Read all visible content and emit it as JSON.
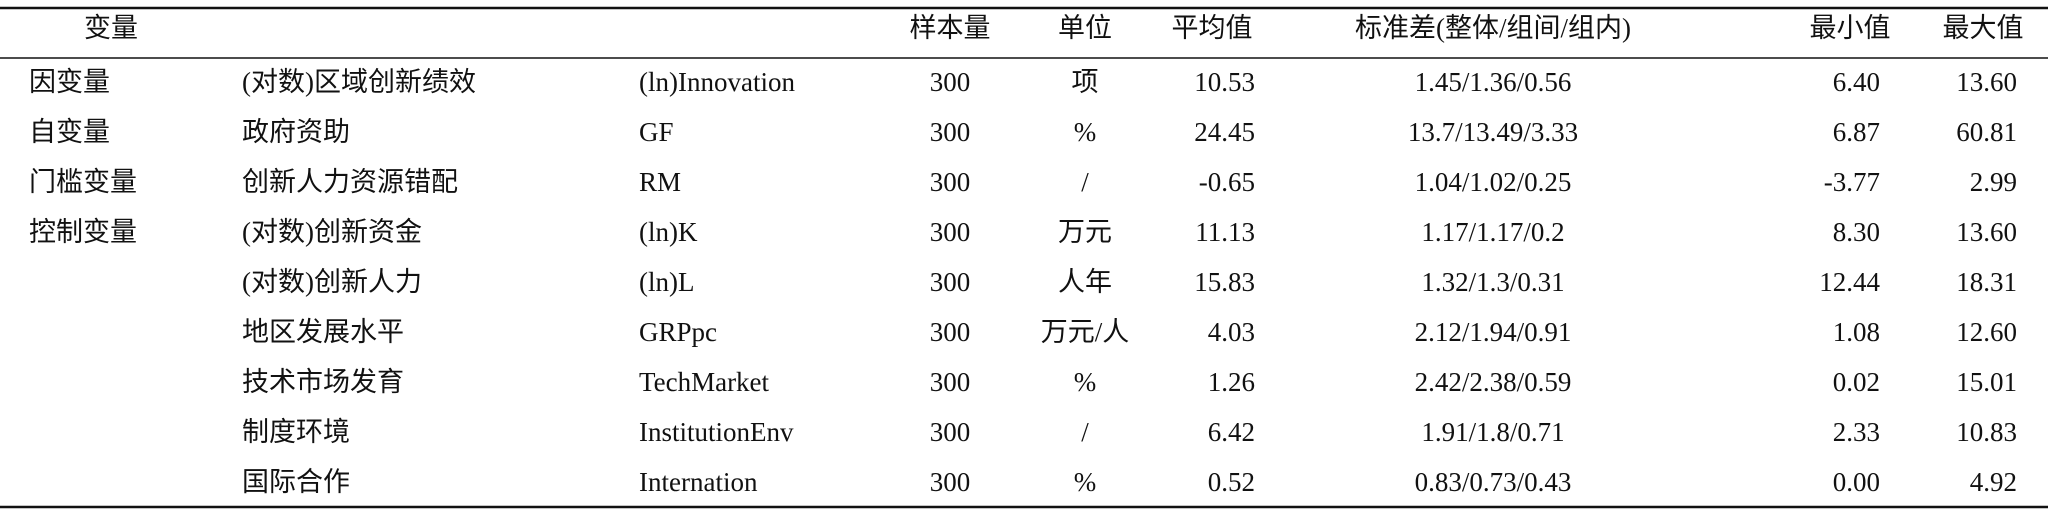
{
  "table": {
    "header": [
      "变量",
      "样本量",
      "单位",
      "平均值",
      "标准差(整体/组间/组内)",
      "最小值",
      "最大值"
    ],
    "rows": [
      [
        "因变量",
        "(对数)区域创新绩效",
        "(ln)Innovation",
        "300",
        "项",
        "10.53",
        "1.45/1.36/0.56",
        "6.40",
        "13.60"
      ],
      [
        "自变量",
        "政府资助",
        "GF",
        "300",
        "%",
        "24.45",
        "13.7/13.49/3.33",
        "6.87",
        "60.81"
      ],
      [
        "门槛变量",
        "创新人力资源错配",
        "RM",
        "300",
        "/",
        "-0.65",
        "1.04/1.02/0.25",
        "-3.77",
        "2.99"
      ],
      [
        "控制变量",
        "(对数)创新资金",
        "(ln)K",
        "300",
        "万元",
        "11.13",
        "1.17/1.17/0.2",
        "8.30",
        "13.60"
      ],
      [
        null,
        "(对数)创新人力",
        "(ln)L",
        "300",
        "人年",
        "15.83",
        "1.32/1.3/0.31",
        "12.44",
        "18.31"
      ],
      [
        null,
        "地区发展水平",
        "GRPpc",
        "300",
        "万元/人",
        "4.03",
        "2.12/1.94/0.91",
        "1.08",
        "12.60"
      ],
      [
        null,
        "技术市场发育",
        "TechMarket",
        "300",
        "%",
        "1.26",
        "2.42/2.38/0.59",
        "0.02",
        "15.01"
      ],
      [
        null,
        "制度环境",
        "InstitutionEnv",
        "300",
        "/",
        "6.42",
        "1.91/1.8/0.71",
        "2.33",
        "10.83"
      ],
      [
        null,
        "国际合作",
        "Internation",
        "300",
        "%",
        "0.52",
        "0.83/0.73/0.43",
        "0.00",
        "4.92"
      ]
    ]
  }
}
